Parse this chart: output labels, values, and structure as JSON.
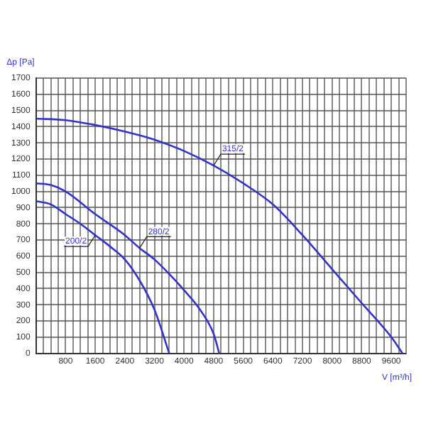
{
  "chart_data": {
    "type": "line",
    "xlabel": "V [m³/h]",
    "ylabel": "Δp [Pa]",
    "xlim": [
      0,
      10000
    ],
    "ylim": [
      0,
      1700
    ],
    "xticks": [
      {
        "value": 0,
        "label": null
      },
      {
        "value": 200,
        "label": null
      },
      {
        "value": 400,
        "label": null
      },
      {
        "value": 600,
        "label": null
      },
      800,
      {
        "value": 1000,
        "label": null
      },
      {
        "value": 1200,
        "label": null
      },
      {
        "value": 1400,
        "label": null
      },
      1600,
      {
        "value": 1800,
        "label": null
      },
      {
        "value": 2000,
        "label": null
      },
      {
        "value": 2200,
        "label": null
      },
      2400,
      {
        "value": 2600,
        "label": null
      },
      {
        "value": 2800,
        "label": null
      },
      {
        "value": 3000,
        "label": null
      },
      3200,
      {
        "value": 3400,
        "label": null
      },
      {
        "value": 3600,
        "label": null
      },
      {
        "value": 3800,
        "label": null
      },
      4000,
      {
        "value": 4200,
        "label": null
      },
      {
        "value": 4400,
        "label": null
      },
      {
        "value": 4600,
        "label": null
      },
      4800,
      {
        "value": 5000,
        "label": null
      },
      {
        "value": 5200,
        "label": null
      },
      {
        "value": 5400,
        "label": null
      },
      5600,
      {
        "value": 5800,
        "label": null
      },
      {
        "value": 6000,
        "label": null
      },
      {
        "value": 6200,
        "label": null
      },
      6400,
      {
        "value": 6600,
        "label": null
      },
      {
        "value": 6800,
        "label": null
      },
      {
        "value": 7000,
        "label": null
      },
      7200,
      {
        "value": 7400,
        "label": null
      },
      {
        "value": 7600,
        "label": null
      },
      {
        "value": 7800,
        "label": null
      },
      8000,
      {
        "value": 8200,
        "label": null
      },
      {
        "value": 8400,
        "label": null
      },
      {
        "value": 8600,
        "label": null
      },
      8800,
      {
        "value": 9000,
        "label": null
      },
      {
        "value": 9200,
        "label": null
      },
      {
        "value": 9400,
        "label": null
      },
      9600,
      {
        "value": 9800,
        "label": null
      },
      {
        "value": 10000,
        "label": null
      }
    ],
    "yticks": [
      0,
      100,
      200,
      300,
      400,
      500,
      600,
      700,
      800,
      900,
      1000,
      1100,
      1200,
      1300,
      1400,
      1500,
      1600,
      1700
    ],
    "grid": true,
    "legend": false,
    "marker": "none",
    "line_style": "solid",
    "series": [
      {
        "name": "315/2",
        "color": "#3333cc",
        "x": [
          0,
          800,
          1600,
          2400,
          3200,
          4000,
          4800,
          5600,
          6400,
          7200,
          8000,
          8800,
          9600,
          9900
        ],
        "values": [
          1450,
          1440,
          1410,
          1370,
          1320,
          1250,
          1160,
          1050,
          920,
          730,
          520,
          310,
          100,
          0
        ]
      },
      {
        "name": "280/2",
        "color": "#3333cc",
        "x": [
          0,
          400,
          800,
          1600,
          2400,
          2800,
          3200,
          3600,
          4000,
          4400,
          4800,
          4950
        ],
        "values": [
          1050,
          1040,
          1000,
          860,
          730,
          650,
          580,
          490,
          390,
          280,
          120,
          0
        ]
      },
      {
        "name": "200/2",
        "color": "#3333cc",
        "x": [
          0,
          400,
          800,
          1200,
          1600,
          2000,
          2400,
          2800,
          3200,
          3600
        ],
        "values": [
          940,
          920,
          860,
          800,
          730,
          660,
          580,
          450,
          270,
          0
        ]
      }
    ]
  }
}
